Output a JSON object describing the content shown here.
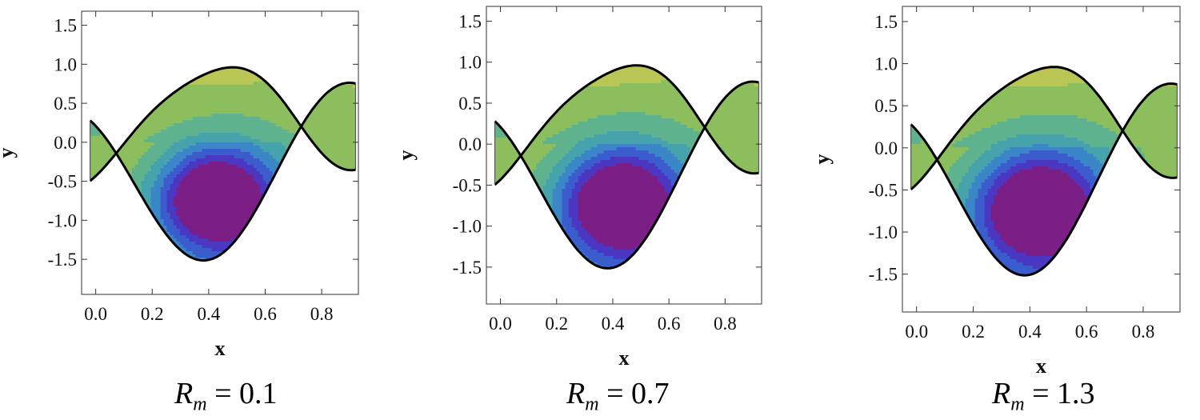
{
  "chart_data": [
    {
      "type": "contour",
      "x_ticks": [
        "0.0",
        "0.2",
        "0.4",
        "0.6",
        "0.8"
      ],
      "y_ticks": [
        "1.5",
        "1.0",
        "0.5",
        "0.0",
        "-0.5",
        "-1.0",
        "-1.5"
      ],
      "x_ticks_values": [
        0.0,
        0.2,
        0.4,
        0.6,
        0.8
      ],
      "y_ticks_values": [
        1.5,
        1.0,
        0.5,
        0.0,
        -0.5,
        -1.0,
        -1.5
      ],
      "xlim": [
        -0.05,
        0.93
      ],
      "ylim": [
        -1.95,
        1.68
      ],
      "xlabel": "x",
      "ylabel": "y",
      "caption": {
        "symbol": "R",
        "sub": "m",
        "eq": " = ",
        "value": "0.1"
      },
      "parameter_Rm": 0.1
    },
    {
      "type": "contour",
      "x_ticks": [
        "0.0",
        "0.2",
        "0.4",
        "0.6",
        "0.8"
      ],
      "y_ticks": [
        "1.5",
        "1.0",
        "0.5",
        "0.0",
        "-0.5",
        "-1.0",
        "-1.5"
      ],
      "x_ticks_values": [
        0.0,
        0.2,
        0.4,
        0.6,
        0.8
      ],
      "y_ticks_values": [
        1.5,
        1.0,
        0.5,
        0.0,
        -0.5,
        -1.0,
        -1.5
      ],
      "xlim": [
        -0.05,
        0.93
      ],
      "ylim": [
        -1.95,
        1.68
      ],
      "xlabel": "x",
      "ylabel": "y",
      "caption": {
        "symbol": "R",
        "sub": "m",
        "eq": " = ",
        "value": "0.7"
      },
      "parameter_Rm": 0.7
    },
    {
      "type": "contour",
      "x_ticks": [
        "0.0",
        "0.2",
        "0.4",
        "0.6",
        "0.8"
      ],
      "y_ticks": [
        "1.5",
        "1.0",
        "0.5",
        "0.0",
        "-0.5",
        "-1.0",
        "-1.5"
      ],
      "x_ticks_values": [
        0.0,
        0.2,
        0.4,
        0.6,
        0.8
      ],
      "y_ticks_values": [
        1.5,
        1.0,
        0.5,
        0.0,
        -0.5,
        -1.0,
        -1.5
      ],
      "xlim": [
        -0.05,
        0.93
      ],
      "ylim": [
        -1.95,
        1.68
      ],
      "xlabel": "x",
      "ylabel": "y",
      "caption": {
        "symbol": "R",
        "sub": "m",
        "eq": " = ",
        "value": "1.3"
      },
      "parameter_Rm": 1.3
    }
  ],
  "colors": {
    "palette": [
      "#7b1e86",
      "#4a37c2",
      "#3a5ccc",
      "#3b86c6",
      "#46a3ac",
      "#5fb28e",
      "#8dbe5e",
      "#b9c655",
      "#dfb84a",
      "#e8923a",
      "#e05f2f",
      "#d42a28"
    ]
  }
}
